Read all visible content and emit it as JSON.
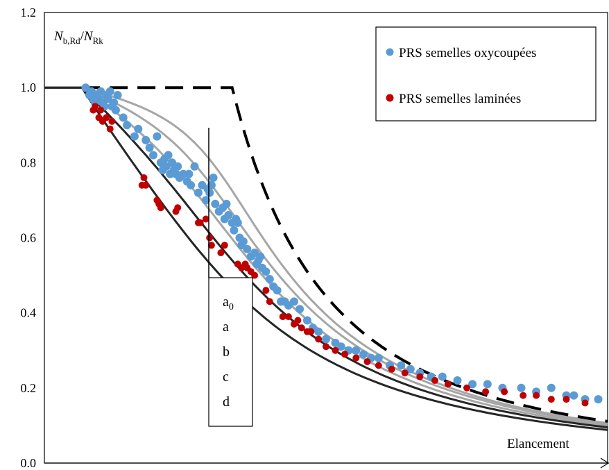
{
  "chart_data": {
    "type": "scatter",
    "title": "",
    "ylabel_parts": {
      "n1": "N",
      "s1": "b,Rd",
      "slash": "/",
      "n2": "N",
      "s2": "Rk"
    },
    "xlabel": "Elancement",
    "ylim": [
      0,
      1.2
    ],
    "xlim": [
      0,
      3.0
    ],
    "yticks": [
      "0.0",
      "0.2",
      "0.4",
      "0.6",
      "0.8",
      "1.0",
      "1.2"
    ],
    "grid": false,
    "legend_position": "top-right",
    "colors": {
      "oxy": "#5b9bd5",
      "lam": "#c00000",
      "curve_grey": "#a6a6a6",
      "curve_dark": "#262626",
      "reference": "#000000"
    },
    "curve_labels": [
      "a0",
      "a",
      "b",
      "c",
      "d"
    ],
    "curves": [
      {
        "label": "a0",
        "alpha": 0.13,
        "color": "grey"
      },
      {
        "label": "a",
        "alpha": 0.21,
        "color": "grey"
      },
      {
        "label": "b",
        "alpha": 0.34,
        "color": "grey"
      },
      {
        "label": "c",
        "alpha": 0.49,
        "color": "dark"
      },
      {
        "label": "d",
        "alpha": 0.76,
        "color": "dark"
      }
    ],
    "reference_curve": {
      "plateau": 1.0,
      "plateau_end": 1.0,
      "style": "dashed"
    },
    "series": [
      {
        "name": "PRS semelles oxycoupées",
        "color": "#5b9bd5",
        "x": [
          0.22,
          0.24,
          0.25,
          0.26,
          0.27,
          0.28,
          0.29,
          0.3,
          0.31,
          0.32,
          0.33,
          0.34,
          0.35,
          0.36,
          0.37,
          0.38,
          0.39,
          0.42,
          0.44,
          0.48,
          0.5,
          0.54,
          0.56,
          0.58,
          0.6,
          0.62,
          0.63,
          0.64,
          0.65,
          0.66,
          0.67,
          0.68,
          0.69,
          0.7,
          0.71,
          0.72,
          0.74,
          0.76,
          0.77,
          0.78,
          0.8,
          0.82,
          0.84,
          0.86,
          0.87,
          0.88,
          0.89,
          0.9,
          0.91,
          0.93,
          0.95,
          0.96,
          0.97,
          0.98,
          1.0,
          1.01,
          1.02,
          1.03,
          1.04,
          1.05,
          1.06,
          1.08,
          1.1,
          1.12,
          1.13,
          1.14,
          1.15,
          1.16,
          1.18,
          1.2,
          1.22,
          1.24,
          1.26,
          1.28,
          1.3,
          1.33,
          1.36,
          1.4,
          1.43,
          1.46,
          1.5,
          1.55,
          1.58,
          1.62,
          1.66,
          1.7,
          1.74,
          1.78,
          1.84,
          1.9,
          1.95,
          2.0,
          2.06,
          2.12,
          2.2,
          2.28,
          2.36,
          2.44,
          2.54,
          2.62,
          2.7,
          2.78,
          2.82,
          2.88,
          2.95
        ],
        "y": [
          1.0,
          0.98,
          0.99,
          0.97,
          0.96,
          0.98,
          0.97,
          0.99,
          0.96,
          0.95,
          0.98,
          0.97,
          0.99,
          0.95,
          0.96,
          0.94,
          0.98,
          0.92,
          0.9,
          0.87,
          0.89,
          0.86,
          0.84,
          0.82,
          0.87,
          0.8,
          0.78,
          0.81,
          0.79,
          0.82,
          0.77,
          0.8,
          0.78,
          0.77,
          0.79,
          0.76,
          0.77,
          0.75,
          0.77,
          0.74,
          0.79,
          0.72,
          0.74,
          0.7,
          0.73,
          0.72,
          0.74,
          0.76,
          0.69,
          0.67,
          0.68,
          0.65,
          0.69,
          0.66,
          0.64,
          0.62,
          0.65,
          0.64,
          0.6,
          0.58,
          0.59,
          0.57,
          0.55,
          0.56,
          0.53,
          0.54,
          0.55,
          0.52,
          0.51,
          0.49,
          0.47,
          0.46,
          0.43,
          0.43,
          0.42,
          0.43,
          0.41,
          0.38,
          0.36,
          0.35,
          0.33,
          0.32,
          0.31,
          0.3,
          0.3,
          0.29,
          0.28,
          0.28,
          0.26,
          0.26,
          0.25,
          0.24,
          0.23,
          0.23,
          0.22,
          0.21,
          0.21,
          0.2,
          0.2,
          0.19,
          0.2,
          0.18,
          0.18,
          0.17,
          0.17
        ]
      },
      {
        "name": "PRS semelles laminées",
        "color": "#c00000",
        "x": [
          0.26,
          0.27,
          0.29,
          0.3,
          0.31,
          0.33,
          0.35,
          0.36,
          0.52,
          0.53,
          0.54,
          0.6,
          0.61,
          0.62,
          0.7,
          0.71,
          0.82,
          0.83,
          0.86,
          0.88,
          0.89,
          0.94,
          0.96,
          1.03,
          1.05,
          1.07,
          1.08,
          1.1,
          1.12,
          1.18,
          1.2,
          1.27,
          1.3,
          1.33,
          1.35,
          1.37,
          1.4,
          1.42,
          1.46,
          1.5,
          1.55,
          1.6,
          1.66,
          1.72,
          1.78,
          1.85,
          1.92,
          2.0,
          2.08,
          2.15,
          2.25,
          2.35,
          2.45,
          2.55,
          2.62,
          2.7,
          2.78,
          2.88
        ],
        "y": [
          0.94,
          0.95,
          0.92,
          0.94,
          0.91,
          0.92,
          0.89,
          0.91,
          0.74,
          0.76,
          0.74,
          0.7,
          0.69,
          0.68,
          0.67,
          0.68,
          0.64,
          0.64,
          0.65,
          0.6,
          0.58,
          0.56,
          0.58,
          0.53,
          0.52,
          0.53,
          0.52,
          0.51,
          0.5,
          0.46,
          0.43,
          0.39,
          0.39,
          0.37,
          0.38,
          0.36,
          0.35,
          0.35,
          0.33,
          0.31,
          0.3,
          0.29,
          0.28,
          0.27,
          0.26,
          0.25,
          0.24,
          0.23,
          0.22,
          0.21,
          0.2,
          0.19,
          0.19,
          0.18,
          0.18,
          0.17,
          0.17,
          0.16
        ]
      }
    ]
  }
}
